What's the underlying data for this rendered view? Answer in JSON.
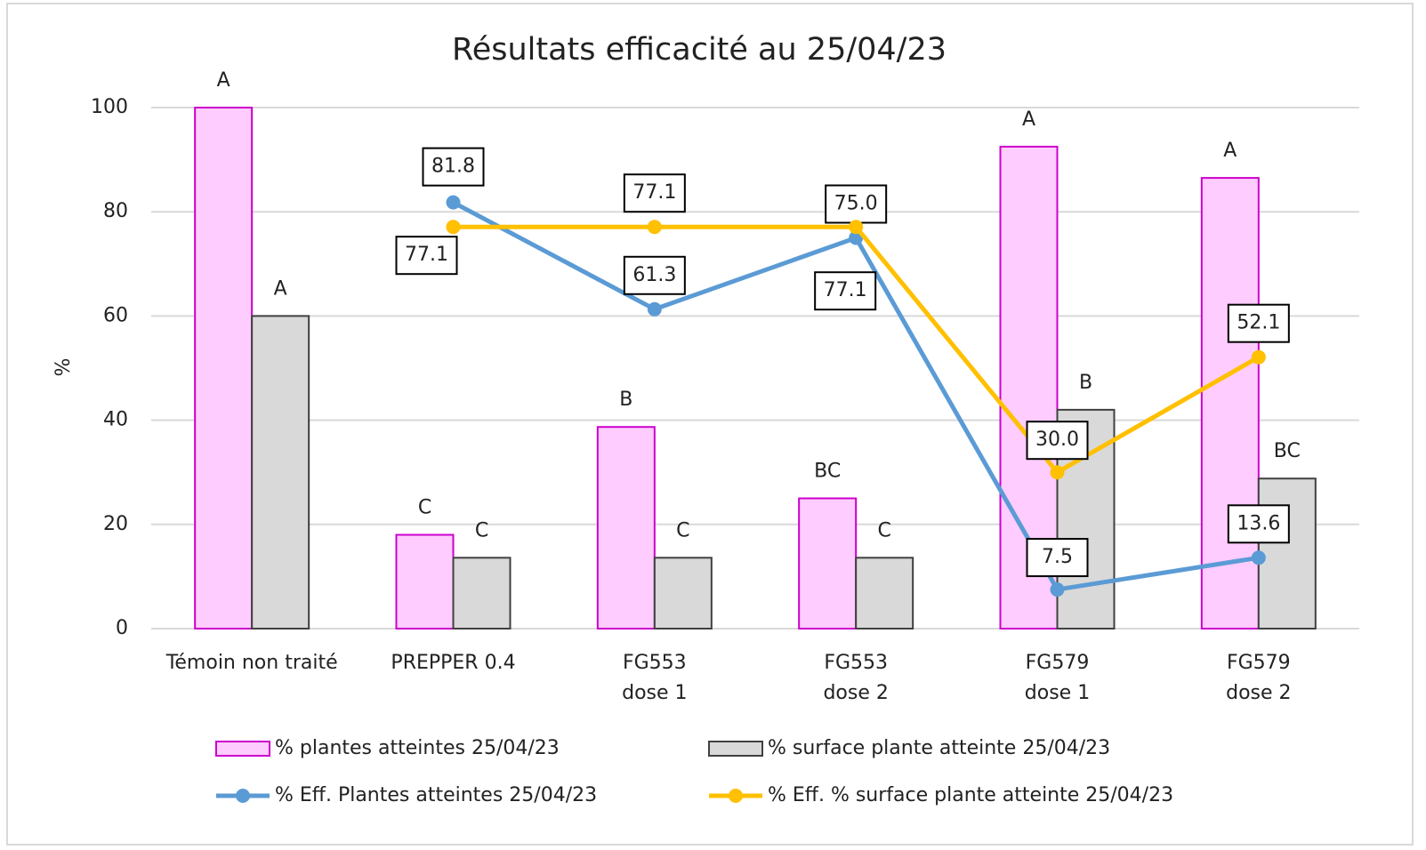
{
  "chart_data": {
    "type": "bar_line",
    "title": "Résultats efficacité au 25/04/23",
    "y_label": "%",
    "categories": [
      [
        "Témoin non traité"
      ],
      [
        "PREPPER 0.4"
      ],
      [
        "FG553",
        "dose 1"
      ],
      [
        "FG553",
        "dose 2"
      ],
      [
        "FG579",
        "dose 1"
      ],
      [
        "FG579",
        "dose 2"
      ]
    ],
    "ylim": [
      0,
      100
    ],
    "yticks": [
      0,
      20,
      40,
      60,
      80,
      100
    ],
    "grid": true,
    "series": [
      {
        "name": "% plantes atteintes 25/04/23",
        "kind": "bar",
        "color": "#ffccff",
        "edge": "#cc00cc",
        "values": [
          100,
          18,
          38.7,
          25,
          92.5,
          86.5
        ],
        "labels": [
          "A",
          "C",
          "B",
          "BC",
          "A",
          "A"
        ]
      },
      {
        "name": "% surface plante atteinte 25/04/23",
        "kind": "bar",
        "color": "#d9d9d9",
        "edge": "#404040",
        "values": [
          60,
          13.6,
          13.6,
          13.6,
          42,
          28.8
        ],
        "labels": [
          "A",
          "C",
          "C",
          "C",
          "B",
          "BC"
        ]
      },
      {
        "name": "% Eff. Plantes atteintes 25/04/23",
        "kind": "line",
        "color": "#5b9bd5",
        "values": [
          null,
          81.8,
          61.3,
          75.0,
          7.5,
          13.6
        ],
        "value_labels": [
          null,
          "81.8",
          "61.3",
          "75.0",
          "7.5",
          "13.6"
        ]
      },
      {
        "name": "% Eff. % surface plante atteinte 25/04/23",
        "kind": "line",
        "color": "#ffc000",
        "values": [
          null,
          77.1,
          77.1,
          77.1,
          30.0,
          52.1
        ],
        "value_labels": [
          null,
          "77.1",
          "77.1",
          "77.1",
          "30.0",
          "52.1"
        ]
      }
    ]
  }
}
